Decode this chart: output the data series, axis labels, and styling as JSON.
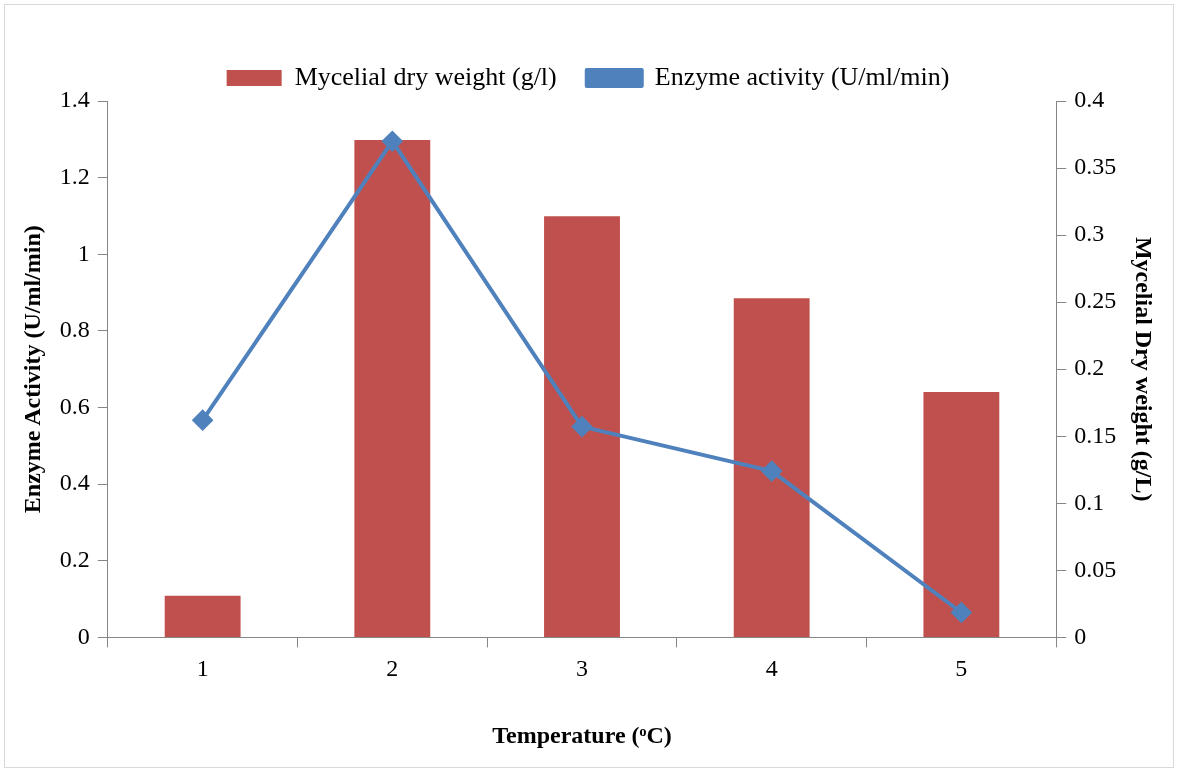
{
  "chart_data": {
    "type": "bar",
    "xlabel": "Temperature (ᵒC)",
    "ylabel": "Enzyme Activity (U/ml/min)",
    "y2label": "Mycelial Dry weight (g/L)",
    "categories": [
      "1",
      "2",
      "3",
      "4",
      "5"
    ],
    "series": [
      {
        "name": "Mycelial dry weight (g/l)",
        "axis": "y2",
        "color": "#c0504d",
        "values": [
          0.031,
          0.371,
          0.314,
          0.253,
          0.183
        ]
      },
      {
        "name": "Enzyme activity (U/ml/min)",
        "type": "line",
        "axis": "y",
        "color": "#4f81bd",
        "marker": "diamond",
        "values": [
          0.567,
          1.295,
          0.55,
          0.434,
          0.065
        ]
      }
    ],
    "ylim": [
      0,
      1.4
    ],
    "yticks": [
      0,
      0.2,
      0.4,
      0.6,
      0.8,
      1,
      1.2,
      1.4
    ],
    "y2lim": [
      0,
      0.4
    ],
    "y2ticks": [
      0,
      0.05,
      0.1,
      0.15,
      0.2,
      0.25,
      0.3,
      0.35,
      0.4
    ],
    "grid": false,
    "legend": "top"
  }
}
